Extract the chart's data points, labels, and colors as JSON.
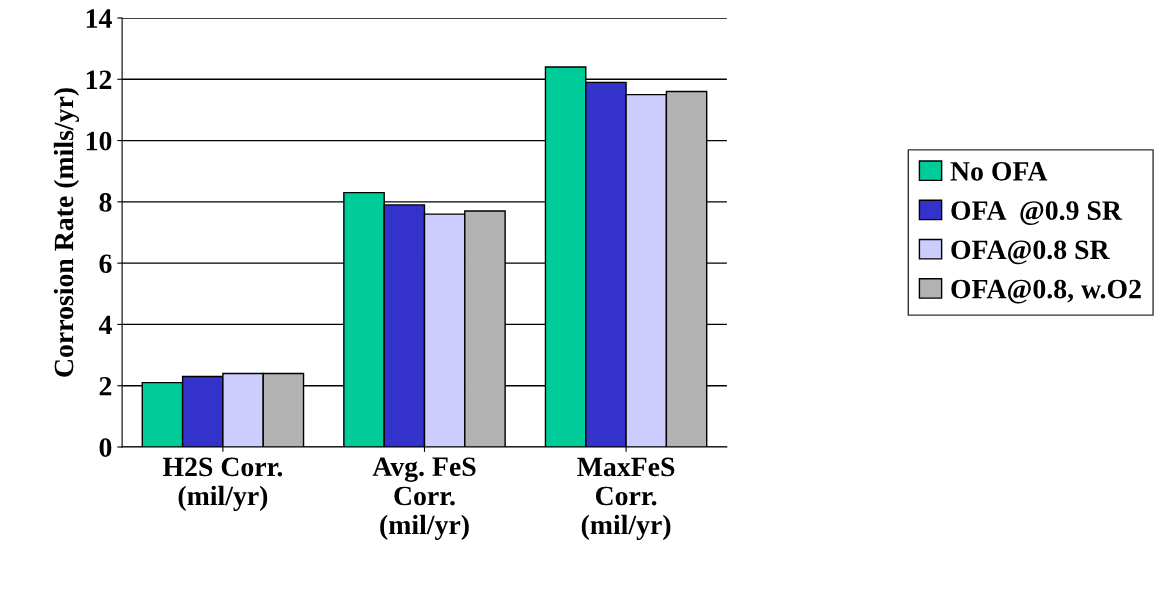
{
  "chart_data": {
    "type": "bar",
    "ylabel": "Corrosion Rate (mils/yr)",
    "categories": [
      "H2S Corr.\n(mil/yr)",
      "Avg. FeS\nCorr.\n(mil/yr)",
      "MaxFeS\nCorr.\n(mil/yr)"
    ],
    "series": [
      {
        "name": "No OFA",
        "color": "#00cc99",
        "values": [
          2.1,
          8.3,
          12.4
        ]
      },
      {
        "name": "OFA  @0.9 SR",
        "color": "#3333cc",
        "values": [
          2.3,
          7.9,
          11.9
        ]
      },
      {
        "name": "OFA@0.8 SR",
        "color": "#ccccff",
        "values": [
          2.4,
          7.6,
          11.5
        ]
      },
      {
        "name": "OFA@0.8, w.O2",
        "color": "#b2b2b2",
        "values": [
          2.4,
          7.7,
          11.6
        ]
      }
    ],
    "ylim": [
      0,
      14
    ],
    "yticks": [
      0,
      2,
      4,
      6,
      8,
      10,
      12,
      14
    ],
    "grid": "y",
    "legend": "right"
  }
}
